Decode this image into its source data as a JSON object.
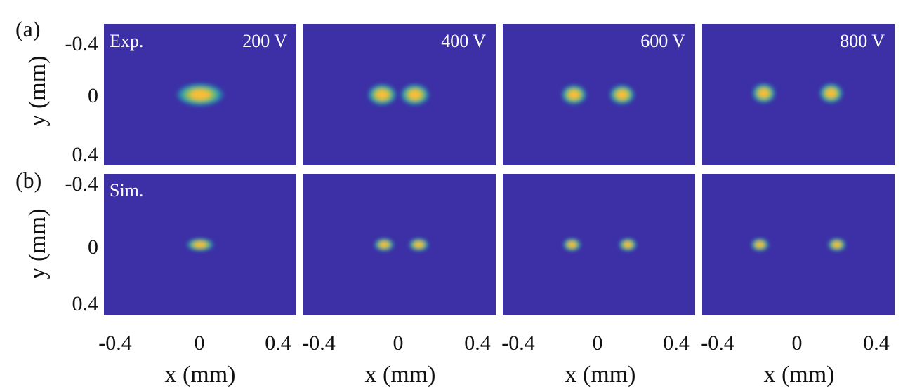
{
  "figure": {
    "panel_labels": [
      "(a)",
      "(b)"
    ],
    "row_tags": [
      "Exp.",
      "Sim."
    ],
    "x_axis_label": "x (mm)",
    "y_axis_label": "y (mm)",
    "x_ticks": [
      "-0.4",
      "0",
      "0.4"
    ],
    "y_ticks": [
      "-0.4",
      "0",
      "0.4"
    ],
    "voltages": [
      "200 V",
      "400 V",
      "600 V",
      "800 V"
    ]
  },
  "colors": {
    "background": "#3d2fa5",
    "cyan": "#1bbdb2",
    "green": "#7fc65c",
    "yellow": "#fdbc36"
  },
  "chart_data": {
    "type": "heatmap",
    "description_rows": [
      "Exp.",
      "Sim."
    ],
    "columns": [
      "200 V",
      "400 V",
      "600 V",
      "800 V"
    ],
    "x_range_mm": [
      -0.5,
      0.5
    ],
    "y_range_mm": [
      -0.5,
      0.5
    ],
    "y_inverted": true,
    "spots_mm": {
      "Exp.": [
        [
          {
            "x": 0.0,
            "y": 0.0,
            "sx": 0.13,
            "sy": 0.085
          }
        ],
        [
          {
            "x": -0.09,
            "y": 0.0,
            "sx": 0.08,
            "sy": 0.08
          },
          {
            "x": 0.08,
            "y": 0.0,
            "sx": 0.08,
            "sy": 0.08
          }
        ],
        [
          {
            "x": -0.13,
            "y": 0.0,
            "sx": 0.07,
            "sy": 0.075
          },
          {
            "x": 0.12,
            "y": 0.0,
            "sx": 0.07,
            "sy": 0.075
          }
        ],
        [
          {
            "x": -0.18,
            "y": -0.01,
            "sx": 0.065,
            "sy": 0.075
          },
          {
            "x": 0.17,
            "y": -0.01,
            "sx": 0.065,
            "sy": 0.075
          }
        ]
      ],
      "Sim.": [
        [
          {
            "x": 0.0,
            "y": 0.0,
            "sx": 0.075,
            "sy": 0.05
          }
        ],
        [
          {
            "x": -0.08,
            "y": 0.0,
            "sx": 0.055,
            "sy": 0.05
          },
          {
            "x": 0.1,
            "y": 0.0,
            "sx": 0.055,
            "sy": 0.05
          }
        ],
        [
          {
            "x": -0.14,
            "y": 0.0,
            "sx": 0.05,
            "sy": 0.05
          },
          {
            "x": 0.15,
            "y": 0.0,
            "sx": 0.05,
            "sy": 0.05
          }
        ],
        [
          {
            "x": -0.2,
            "y": 0.0,
            "sx": 0.05,
            "sy": 0.05
          },
          {
            "x": 0.2,
            "y": 0.0,
            "sx": 0.05,
            "sy": 0.05
          }
        ]
      ]
    }
  }
}
